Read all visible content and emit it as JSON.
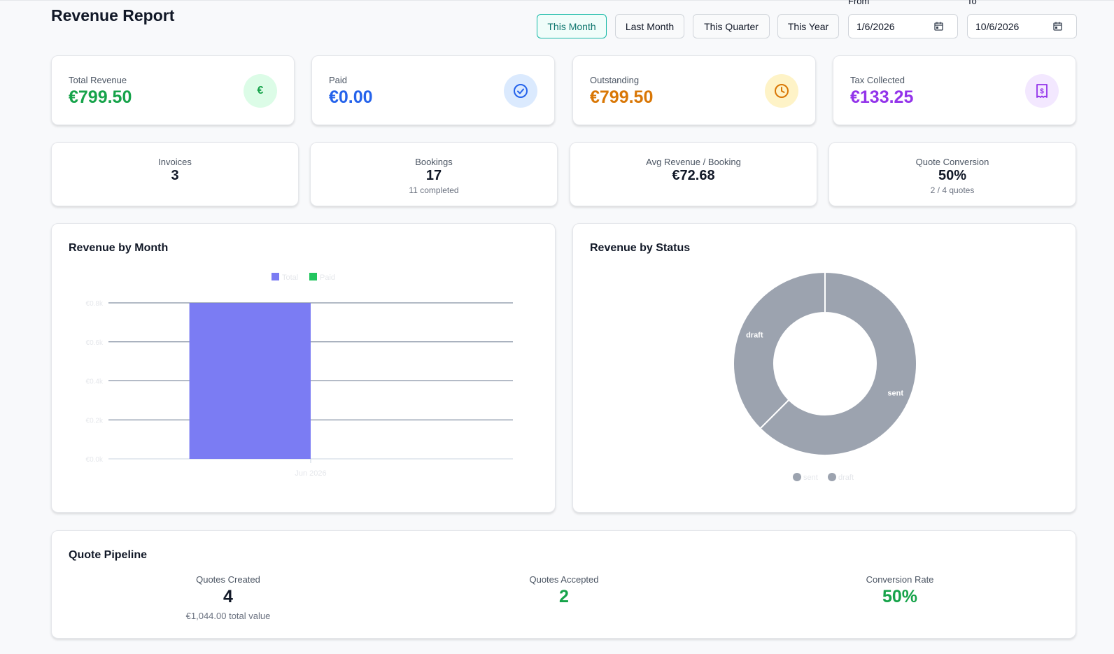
{
  "page": {
    "title": "Revenue Report"
  },
  "periods": {
    "this_month": "This Month",
    "last_month": "Last Month",
    "this_quarter": "This Quarter",
    "this_year": "This Year",
    "active": "this_month"
  },
  "date_range": {
    "from_label": "From",
    "from_value": "1/6/2026",
    "to_label": "To",
    "to_value": "10/6/2026"
  },
  "summary": {
    "total_revenue": {
      "label": "Total Revenue",
      "value": "€799.50",
      "icon": "euro-icon",
      "icon_glyph": "€",
      "color": "#16a34a",
      "bg": "#dcfce7"
    },
    "paid": {
      "label": "Paid",
      "value": "€0.00",
      "icon": "check-circle-icon",
      "color": "#2563eb",
      "bg": "#dbeafe"
    },
    "outstanding": {
      "label": "Outstanding",
      "value": "€799.50",
      "icon": "clock-icon",
      "color": "#d97706",
      "bg": "#fef3c7"
    },
    "tax_collected": {
      "label": "Tax Collected",
      "value": "€133.25",
      "icon": "receipt-icon",
      "color": "#9333ea",
      "bg": "#f3e8ff"
    }
  },
  "metrics": {
    "invoices": {
      "label": "Invoices",
      "value": "3"
    },
    "bookings": {
      "label": "Bookings",
      "value": "17",
      "sub": "11 completed"
    },
    "avg_revenue": {
      "label": "Avg Revenue / Booking",
      "value": "€72.68"
    },
    "quote_conversion": {
      "label": "Quote Conversion",
      "value": "50%",
      "sub": "2 / 4 quotes"
    }
  },
  "revenue_by_month": {
    "title": "Revenue by Month"
  },
  "revenue_by_status": {
    "title": "Revenue by Status"
  },
  "quote_pipeline": {
    "title": "Quote Pipeline",
    "created": {
      "label": "Quotes Created",
      "value": "4",
      "sub": "€1,044.00 total value"
    },
    "accepted": {
      "label": "Quotes Accepted",
      "value": "2"
    },
    "rate": {
      "label": "Conversion Rate",
      "value": "50%"
    }
  },
  "colors": {
    "accent": "#14b8a6",
    "green": "#16a34a",
    "bar_total": "#7b7cf3",
    "bar_paid": "#22c55e",
    "slice": "#9ca3af"
  },
  "chart_data": [
    {
      "type": "bar",
      "title": "Revenue by Month",
      "categories": [
        "Jun 2026"
      ],
      "series": [
        {
          "name": "Total",
          "values": [
            0.7995
          ],
          "color": "#7b7cf3"
        },
        {
          "name": "Paid",
          "values": [
            0
          ],
          "color": "#22c55e"
        }
      ],
      "ylim": [
        0,
        0.8
      ],
      "yticks": [
        "€0.0k",
        "€0.2k",
        "€0.4k",
        "€0.6k",
        "€0.8k"
      ],
      "ytick_values": [
        0,
        0.2,
        0.4,
        0.6,
        0.8
      ],
      "grid": true,
      "legend": "top"
    },
    {
      "type": "pie",
      "title": "Revenue by Status",
      "labels": [
        "sent",
        "draft"
      ],
      "values": [
        62.5,
        37.5
      ],
      "colors": [
        "#9ca3af",
        "#9ca3af"
      ],
      "donut": true,
      "legend": "bottom"
    }
  ]
}
